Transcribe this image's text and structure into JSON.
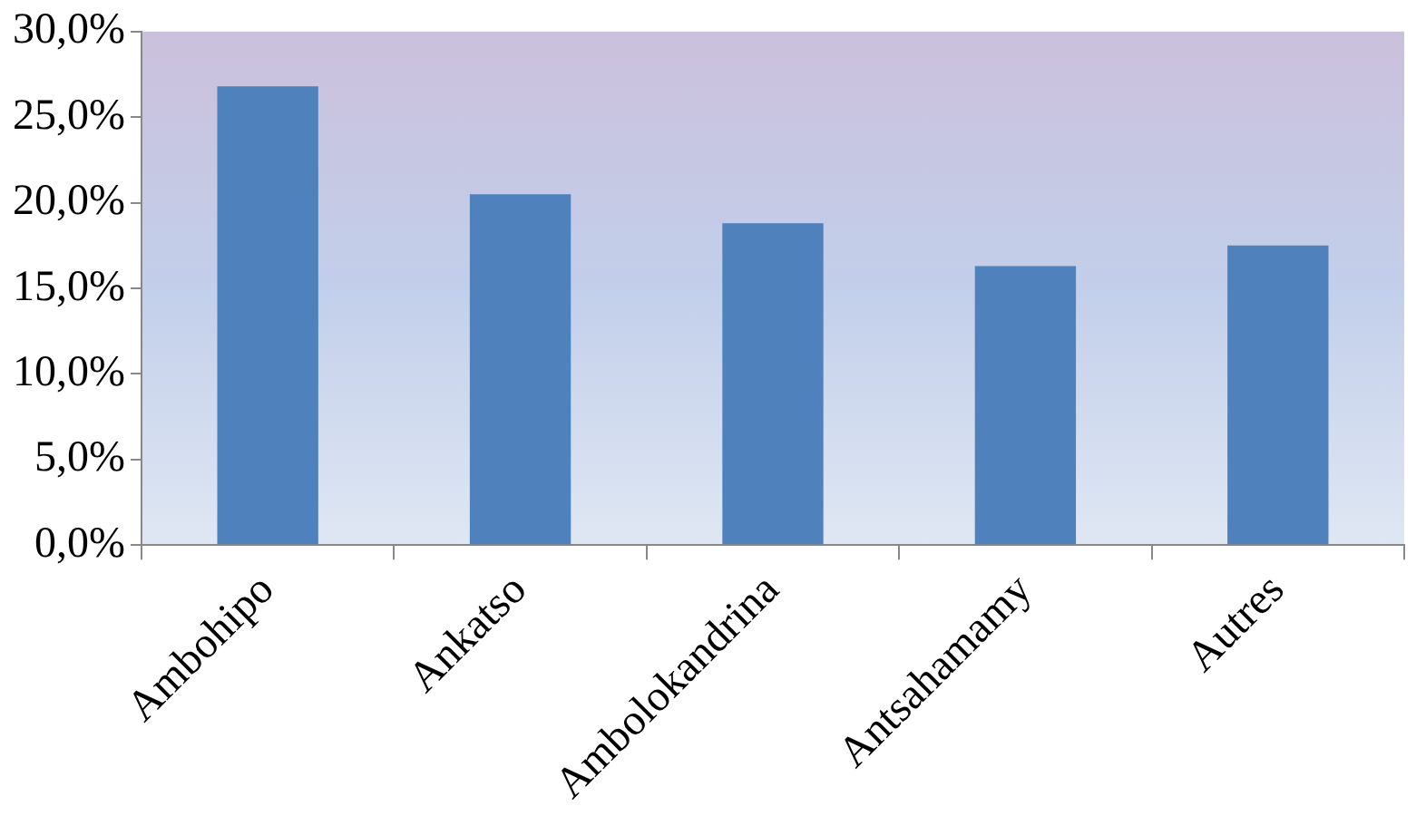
{
  "chart_data": {
    "type": "bar",
    "categories": [
      "Ambohipo",
      "Ankatso",
      "Ambolokandrina",
      "Antsahamamy",
      "Autres"
    ],
    "values": [
      26.8,
      20.5,
      18.8,
      16.3,
      17.5
    ],
    "color": "#4f81bd",
    "ylim": [
      0,
      30
    ],
    "yticks": [
      {
        "value": 0,
        "label": "0,0%"
      },
      {
        "value": 5,
        "label": "5,0%"
      },
      {
        "value": 10,
        "label": "10,0%"
      },
      {
        "value": 15,
        "label": "15,0%"
      },
      {
        "value": 20,
        "label": "20,0%"
      },
      {
        "value": 25,
        "label": "25,0%"
      },
      {
        "value": 30,
        "label": "30,0%"
      }
    ],
    "grid": false,
    "legend": false
  }
}
